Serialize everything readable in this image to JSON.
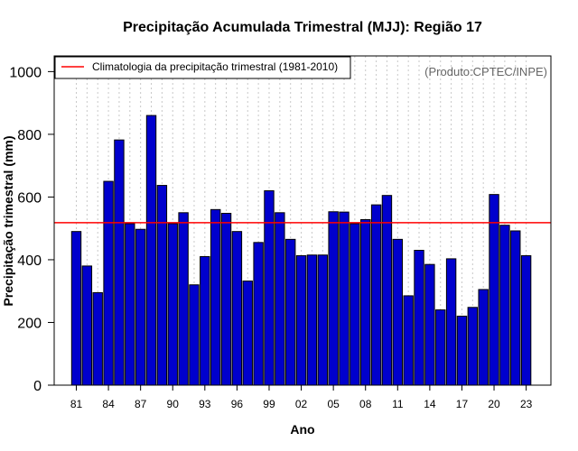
{
  "chart_data": {
    "type": "bar",
    "title": "Precipitação Acumulada Trimestral (MJJ): Região 17",
    "xlabel": "Ano",
    "ylabel": "Precipitação trimestral (mm)",
    "ylim": [
      0,
      1050
    ],
    "yticks": [
      0,
      200,
      400,
      600,
      800,
      1000
    ],
    "categories": [
      "1981",
      "1982",
      "1983",
      "1984",
      "1985",
      "1986",
      "1987",
      "1988",
      "1989",
      "1990",
      "1991",
      "1992",
      "1993",
      "1994",
      "1995",
      "1996",
      "1997",
      "1998",
      "1999",
      "2000",
      "2001",
      "2002",
      "2003",
      "2004",
      "2005",
      "2006",
      "2007",
      "2008",
      "2009",
      "2010",
      "2011",
      "2012",
      "2013",
      "2014",
      "2015",
      "2016",
      "2017",
      "2018",
      "2019",
      "2020",
      "2021",
      "2022",
      "2023"
    ],
    "tick_labels": [
      {
        "index": 0,
        "label": "81"
      },
      {
        "index": 3,
        "label": "84"
      },
      {
        "index": 6,
        "label": "87"
      },
      {
        "index": 9,
        "label": "90"
      },
      {
        "index": 12,
        "label": "93"
      },
      {
        "index": 15,
        "label": "96"
      },
      {
        "index": 18,
        "label": "99"
      },
      {
        "index": 21,
        "label": "02"
      },
      {
        "index": 24,
        "label": "05"
      },
      {
        "index": 27,
        "label": "08"
      },
      {
        "index": 30,
        "label": "11"
      },
      {
        "index": 33,
        "label": "14"
      },
      {
        "index": 36,
        "label": "17"
      },
      {
        "index": 39,
        "label": "20"
      },
      {
        "index": 42,
        "label": "23"
      }
    ],
    "values": [
      490,
      380,
      295,
      650,
      782,
      515,
      497,
      860,
      637,
      515,
      550,
      320,
      410,
      560,
      548,
      490,
      332,
      455,
      620,
      550,
      465,
      413,
      415,
      415,
      553,
      552,
      515,
      528,
      575,
      605,
      465,
      285,
      430,
      385,
      240,
      403,
      220,
      248,
      305,
      608,
      510,
      492,
      413
    ],
    "climatology": 518,
    "grid": "vertical dotted",
    "colors": {
      "bar_fill": "#0000cd",
      "bar_stroke": "#000000",
      "climatology_line": "#ff0000",
      "grid": "#c8c8c8"
    },
    "legend": {
      "position": "top-left",
      "entries": [
        {
          "label": "Climatologia da precipitação trimestral (1981-2010)",
          "color": "#ff0000"
        }
      ]
    },
    "credit": "(Produto:CPTEC/INPE)"
  }
}
